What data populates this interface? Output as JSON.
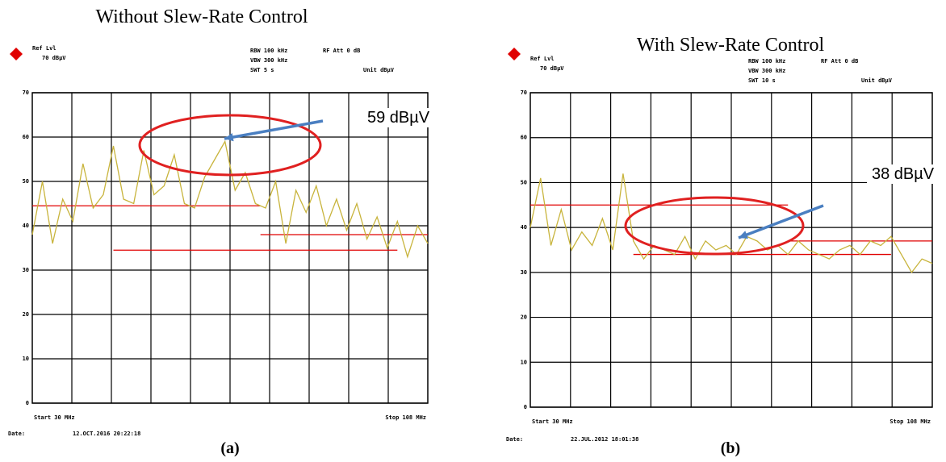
{
  "chart_data": [
    {
      "type": "line",
      "title": "Without Slew-Rate Control",
      "annotation": "59 dBµV",
      "caption": "(a)",
      "ref_label": "Ref Lvl",
      "ref_level": "70 dBµV",
      "settings": [
        "RBW 100 kHz",
        "VBW 300 kHz",
        "SWT 5 s",
        "RF Att 0 dB",
        "Unit dBµV"
      ],
      "start": "Start 30 MHz",
      "stop": "Stop 108 MHz",
      "date_label": "Date:",
      "date": "12.OCT.2016 20:22:18",
      "x": [
        30,
        32,
        34,
        36,
        38,
        40,
        42,
        44,
        46,
        48,
        50,
        52,
        54,
        56,
        58,
        60,
        62,
        64,
        66,
        68,
        70,
        72,
        74,
        76,
        78,
        80,
        82,
        84,
        86,
        88,
        90,
        92,
        94,
        96,
        98,
        100,
        102,
        104,
        106,
        108
      ],
      "xlim": [
        30,
        108
      ],
      "ylim": [
        0,
        70
      ],
      "yticks": [
        0,
        10,
        20,
        30,
        40,
        50,
        60,
        70
      ],
      "grid": true,
      "series": [
        {
          "color": "#c8b43c",
          "values": [
            38,
            50,
            36,
            46,
            41,
            54,
            44,
            47,
            58,
            46,
            45,
            57,
            47,
            49,
            56,
            45,
            44,
            51,
            55,
            59,
            48,
            52,
            45,
            44,
            50,
            36,
            48,
            43,
            49,
            40,
            46,
            39,
            45,
            37,
            42,
            35,
            41,
            33,
            40,
            36
          ]
        }
      ],
      "limits": [
        {
          "color": "#e00000",
          "x": [
            30,
            75
          ],
          "values": [
            44.5,
            44.5
          ]
        },
        {
          "color": "#e00000",
          "x": [
            75,
            108
          ],
          "values": [
            38,
            38
          ]
        },
        {
          "color": "#e00000",
          "x": [
            46,
            102
          ],
          "values": [
            34.5,
            34.5
          ]
        }
      ]
    },
    {
      "type": "line",
      "title": "With Slew-Rate Control",
      "annotation": "38 dBµV",
      "caption": "(b)",
      "ref_label": "Ref Lvl",
      "ref_level": "70 dBµV",
      "settings": [
        "RBW 100 kHz",
        "VBW 300 kHz",
        "SWT 10 s",
        "RF Att 0 dB",
        "Unit dBµV"
      ],
      "start": "Start 30 MHz",
      "stop": "Stop 108 MHz",
      "date_label": "Date:",
      "date": "22.JUL.2012 18:01:38",
      "x": [
        30,
        32,
        34,
        36,
        38,
        40,
        42,
        44,
        46,
        48,
        50,
        52,
        54,
        56,
        58,
        60,
        62,
        64,
        66,
        68,
        70,
        72,
        74,
        76,
        78,
        80,
        82,
        84,
        86,
        88,
        90,
        92,
        94,
        96,
        98,
        100,
        102,
        104,
        106,
        108
      ],
      "xlim": [
        30,
        108
      ],
      "ylim": [
        0,
        70
      ],
      "yticks": [
        0,
        10,
        20,
        30,
        40,
        50,
        60,
        70
      ],
      "grid": true,
      "series": [
        {
          "color": "#c8b43c",
          "values": [
            40,
            51,
            36,
            44,
            35,
            39,
            36,
            42,
            35,
            52,
            37,
            33,
            36,
            35,
            34,
            38,
            33,
            37,
            35,
            36,
            34,
            38,
            37,
            35,
            36,
            34,
            37,
            35,
            34,
            33,
            35,
            36,
            34,
            37,
            36,
            38,
            34,
            30,
            33,
            32
          ]
        }
      ],
      "limits": [
        {
          "color": "#e00000",
          "x": [
            30,
            80
          ],
          "values": [
            45,
            45
          ]
        },
        {
          "color": "#e00000",
          "x": [
            80,
            108
          ],
          "values": [
            37,
            37
          ]
        },
        {
          "color": "#e00000",
          "x": [
            50,
            100
          ],
          "values": [
            34,
            34
          ]
        }
      ]
    }
  ]
}
